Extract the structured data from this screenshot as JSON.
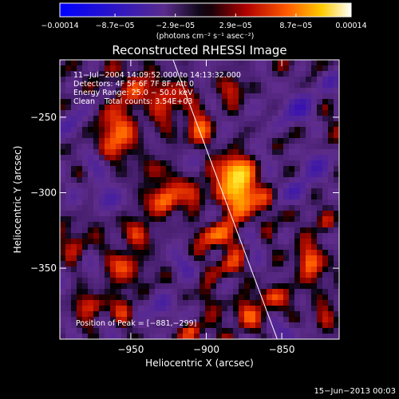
{
  "chart_data": {
    "type": "heatmap",
    "title": "Reconstructed RHESSI Image",
    "xlabel": "Heliocentric X (arcsec)",
    "ylabel": "Heliocentric Y (arcsec)",
    "xlim": [
      -997,
      -812
    ],
    "ylim": [
      -397,
      -212
    ],
    "x_ticks": [
      -950,
      -900,
      -850
    ],
    "y_ticks": [
      -250,
      -300,
      -350
    ],
    "x_tick_labels": [
      "−950",
      "−900",
      "−850"
    ],
    "y_tick_labels": [
      "−250",
      "−300",
      "−350"
    ],
    "colorbar": {
      "range": [
        -0.00014,
        0.00014
      ],
      "tick_values": [
        -0.00014,
        -8.7e-05,
        -2.9e-05,
        2.9e-05,
        8.7e-05,
        0.00014
      ],
      "tick_labels": [
        "−0.00014",
        "−8.7e−05",
        "−2.9e−05",
        "2.9e−05",
        "8.7e−05",
        "0.00014"
      ],
      "unit_label": "(photons cm⁻² s⁻¹ asec⁻²)"
    },
    "annotations": [
      "11−Jul−2004 14:09:52.000 to 14:13:32.000",
      "Detectors: 4F 5F 6F 7F 8F, Att 0",
      "Energy Range: 25.0 − 50.0 keV",
      "Clean    Total counts: 3.54E+03"
    ],
    "peak_label": "Position of Peak = [−881,−299]",
    "peak": [
      -881,
      -299
    ],
    "limb_line": [
      [
        -922,
        -212
      ],
      [
        -853,
        -397
      ]
    ],
    "sources": [
      {
        "x": -878,
        "y": -300,
        "sx": 7,
        "sy": 12,
        "amp": 1.0
      },
      {
        "x": -885,
        "y": -284,
        "sx": 6,
        "sy": 6,
        "amp": 0.55
      },
      {
        "x": -927,
        "y": -305,
        "sx": 6,
        "sy": 7,
        "amp": 0.6
      },
      {
        "x": -907,
        "y": -300,
        "sx": 5,
        "sy": 6,
        "amp": 0.45
      },
      {
        "x": -960,
        "y": -260,
        "sx": 8,
        "sy": 14,
        "amp": 0.5
      },
      {
        "x": -947,
        "y": -232,
        "sx": 6,
        "sy": 8,
        "amp": 0.5
      },
      {
        "x": -925,
        "y": -235,
        "sx": 8,
        "sy": 9,
        "amp": 0.45
      },
      {
        "x": -905,
        "y": -260,
        "sx": 7,
        "sy": 7,
        "amp": 0.5
      },
      {
        "x": -935,
        "y": -285,
        "sx": 6,
        "sy": 6,
        "amp": 0.35
      },
      {
        "x": -945,
        "y": -328,
        "sx": 6,
        "sy": 6,
        "amp": 0.45
      },
      {
        "x": -955,
        "y": -348,
        "sx": 7,
        "sy": 7,
        "amp": 0.5
      },
      {
        "x": -895,
        "y": -328,
        "sx": 8,
        "sy": 6,
        "amp": 0.55
      },
      {
        "x": -885,
        "y": -350,
        "sx": 6,
        "sy": 6,
        "amp": 0.4
      },
      {
        "x": -832,
        "y": -345,
        "sx": 6,
        "sy": 8,
        "amp": 0.65
      },
      {
        "x": -858,
        "y": -368,
        "sx": 6,
        "sy": 5,
        "amp": 0.45
      },
      {
        "x": -822,
        "y": -385,
        "sx": 5,
        "sy": 6,
        "amp": 0.4
      },
      {
        "x": -875,
        "y": -380,
        "sx": 6,
        "sy": 6,
        "amp": 0.4
      },
      {
        "x": -860,
        "y": -305,
        "sx": 5,
        "sy": 6,
        "amp": 0.35
      },
      {
        "x": -985,
        "y": -335,
        "sx": 5,
        "sy": 6,
        "amp": 0.3
      },
      {
        "x": -975,
        "y": -375,
        "sx": 6,
        "sy": 5,
        "amp": 0.35
      },
      {
        "x": -955,
        "y": -380,
        "sx": 5,
        "sy": 6,
        "amp": 0.3
      },
      {
        "x": -900,
        "y": -370,
        "sx": 5,
        "sy": 6,
        "amp": 0.3
      },
      {
        "x": -910,
        "y": -392,
        "sx": 5,
        "sy": 4,
        "amp": 0.35
      },
      {
        "x": -820,
        "y": -320,
        "sx": 4,
        "sy": 4,
        "amp": 0.25
      },
      {
        "x": -882,
        "y": -230,
        "sx": 5,
        "sy": 5,
        "amp": 0.3
      },
      {
        "x": -975,
        "y": -280,
        "sx": 6,
        "sy": 6,
        "amp": -0.35
      },
      {
        "x": -965,
        "y": -305,
        "sx": 7,
        "sy": 6,
        "amp": -0.4
      },
      {
        "x": -990,
        "y": -255,
        "sx": 5,
        "sy": 8,
        "amp": -0.3
      },
      {
        "x": -915,
        "y": -348,
        "sx": 7,
        "sy": 6,
        "amp": -0.35
      },
      {
        "x": -930,
        "y": -375,
        "sx": 6,
        "sy": 6,
        "amp": -0.35
      },
      {
        "x": -840,
        "y": -245,
        "sx": 8,
        "sy": 8,
        "amp": -0.4
      },
      {
        "x": -828,
        "y": -280,
        "sx": 6,
        "sy": 7,
        "amp": -0.4
      },
      {
        "x": -840,
        "y": -300,
        "sx": 6,
        "sy": 6,
        "amp": -0.35
      },
      {
        "x": -868,
        "y": -330,
        "sx": 5,
        "sy": 5,
        "amp": -0.3
      },
      {
        "x": -820,
        "y": -225,
        "sx": 5,
        "sy": 5,
        "amp": -0.3
      },
      {
        "x": -862,
        "y": -225,
        "sx": 5,
        "sy": 5,
        "amp": -0.25
      },
      {
        "x": -860,
        "y": -275,
        "sx": 5,
        "sy": 5,
        "amp": -0.25
      },
      {
        "x": -905,
        "y": -280,
        "sx": 4,
        "sy": 5,
        "amp": -0.2
      },
      {
        "x": -845,
        "y": -392,
        "sx": 6,
        "sy": 4,
        "amp": -0.3
      }
    ],
    "noise_seed": 7
  },
  "footer": {
    "date": "15−Jun−2013 00:03"
  }
}
